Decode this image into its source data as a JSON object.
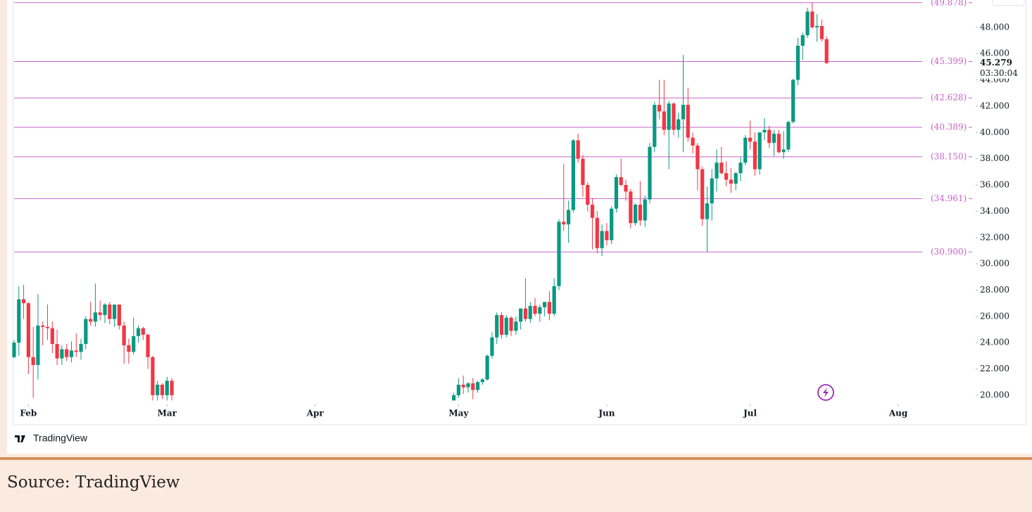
{
  "chart_data": {
    "type": "candlestick",
    "x": [
      29,
      30,
      31,
      32,
      33,
      34,
      35,
      36,
      37,
      38,
      39,
      40,
      41,
      42,
      43,
      44,
      45,
      46,
      47,
      48,
      49,
      50,
      51,
      52,
      53,
      54,
      55,
      56,
      57,
      58,
      59,
      60,
      61,
      62,
      121,
      122,
      123,
      124,
      125,
      126,
      127,
      128,
      129,
      130,
      131,
      132,
      133,
      134,
      135,
      136,
      137,
      138,
      139,
      140,
      141,
      142,
      143,
      144,
      145,
      146,
      147,
      148,
      149,
      150,
      151,
      152,
      153,
      154,
      155,
      156,
      157,
      158,
      159,
      160,
      161,
      162,
      163,
      164,
      165,
      166,
      167,
      168,
      169,
      170,
      171,
      172,
      173,
      174,
      175,
      176,
      177,
      178,
      179,
      180,
      181,
      182,
      183,
      184,
      185,
      186,
      187,
      188,
      189,
      190,
      191,
      192,
      193,
      194,
      195,
      196,
      197,
      198,
      199
    ],
    "open": [
      22.9,
      24.0,
      27.3,
      27.0,
      22.9,
      22.3,
      25.3,
      25.2,
      25.1,
      23.9,
      22.8,
      23.5,
      22.9,
      23.4,
      23.3,
      23.9,
      25.8,
      25.6,
      26.3,
      26.1,
      26.9,
      25.8,
      26.9,
      25.3,
      23.8,
      23.3,
      24.5,
      25.1,
      24.6,
      22.9,
      20.0,
      20.8,
      20.0,
      21.1,
      19.6,
      20.0,
      20.8,
      20.6,
      20.9,
      20.4,
      21.0,
      21.2,
      23.0,
      24.4,
      26.1,
      24.6,
      25.9,
      24.9,
      25.6,
      26.6,
      25.8,
      26.8,
      26.2,
      26.7,
      27.1,
      26.2,
      28.3,
      33.2,
      33.0,
      34.1,
      39.4,
      38.0,
      36.0,
      34.5,
      33.5,
      31.2,
      32.5,
      31.8,
      34.2,
      36.6,
      36.0,
      35.5,
      33.1,
      34.5,
      33.3,
      34.9,
      38.9,
      42.1,
      41.6,
      40.2,
      42.2,
      40.2,
      41.0,
      42.1,
      39.6,
      39.0,
      37.2,
      33.4,
      34.6,
      36.5,
      37.7,
      36.9,
      36.4,
      36.1,
      36.9,
      37.7,
      39.6,
      39.3,
      37.2,
      40.0,
      40.2,
      39.2,
      39.9,
      38.5,
      38.7,
      40.8,
      44.0,
      46.6,
      47.4,
      49.2,
      48.0,
      48.1,
      47.1
    ],
    "high": [
      24.2,
      28.3,
      28.4,
      27.1,
      25.2,
      27.7,
      25.6,
      26.9,
      25.6,
      25.0,
      23.8,
      23.9,
      24.1,
      24.7,
      24.3,
      26.0,
      27.1,
      28.5,
      27.2,
      27.0,
      27.1,
      26.9,
      26.9,
      25.6,
      24.3,
      25.9,
      25.3,
      25.2,
      24.7,
      23.0,
      21.1,
      20.9,
      21.4,
      21.3,
      20.2,
      21.3,
      21.5,
      21.0,
      21.3,
      21.1,
      21.3,
      23.1,
      24.8,
      26.3,
      26.3,
      26.1,
      26.0,
      26.0,
      26.6,
      28.9,
      27.1,
      27.4,
      26.9,
      27.1,
      27.9,
      28.9,
      33.4,
      37.6,
      34.8,
      39.5,
      39.9,
      38.3,
      36.2,
      35.0,
      34.0,
      33.0,
      33.1,
      34.4,
      36.8,
      38.0,
      36.4,
      35.7,
      34.6,
      36.3,
      35.2,
      39.2,
      42.3,
      44.0,
      44.0,
      42.4,
      42.3,
      41.5,
      45.9,
      43.4,
      40.0,
      39.2,
      37.4,
      35.9,
      37.2,
      38.7,
      38.9,
      37.8,
      37.3,
      37.0,
      38.1,
      39.8,
      40.9,
      40.0,
      40.0,
      41.1,
      40.5,
      40.2,
      40.2,
      40.1,
      40.9,
      44.1,
      47.2,
      47.6,
      49.5,
      49.9,
      49.0,
      48.6,
      47.3
    ],
    "low": [
      22.8,
      23.0,
      25.8,
      21.6,
      19.8,
      21.2,
      23.8,
      24.2,
      23.2,
      22.3,
      22.3,
      22.6,
      22.5,
      22.9,
      22.7,
      23.5,
      25.3,
      25.2,
      25.7,
      25.5,
      25.4,
      25.2,
      25.0,
      22.4,
      22.4,
      23.1,
      24.0,
      24.2,
      22.0,
      19.6,
      19.6,
      19.7,
      19.6,
      19.6,
      19.6,
      19.8,
      20.1,
      20.2,
      19.7,
      20.2,
      20.8,
      21.1,
      22.8,
      23.9,
      24.3,
      24.4,
      24.5,
      24.6,
      25.0,
      25.6,
      25.5,
      26.0,
      25.6,
      26.0,
      25.7,
      26.0,
      28.0,
      32.5,
      31.6,
      33.9,
      37.7,
      35.1,
      34.0,
      31.1,
      30.8,
      30.6,
      31.4,
      31.5,
      33.9,
      35.9,
      34.8,
      32.7,
      32.9,
      32.9,
      32.8,
      34.6,
      38.5,
      41.0,
      39.8,
      37.2,
      39.8,
      39.6,
      38.5,
      39.3,
      38.4,
      35.6,
      32.9,
      30.9,
      33.3,
      35.5,
      36.8,
      35.9,
      35.4,
      35.6,
      36.3,
      37.5,
      38.7,
      36.7,
      36.8,
      39.4,
      38.8,
      38.2,
      38.4,
      38.0,
      38.5,
      40.7,
      43.6,
      45.5,
      47.2,
      47.9,
      46.9,
      46.9,
      45.2
    ],
    "close": [
      24.0,
      27.3,
      27.0,
      22.9,
      22.3,
      25.3,
      25.2,
      25.1,
      23.9,
      22.8,
      23.5,
      22.9,
      23.4,
      23.3,
      23.9,
      25.8,
      25.6,
      26.3,
      26.1,
      26.9,
      25.8,
      26.9,
      25.3,
      23.8,
      23.3,
      24.5,
      25.1,
      24.6,
      22.9,
      20.0,
      20.8,
      20.0,
      21.1,
      20.0,
      20.0,
      20.8,
      20.6,
      20.9,
      20.4,
      21.0,
      21.2,
      23.0,
      24.4,
      26.1,
      24.6,
      25.9,
      24.9,
      25.6,
      26.6,
      25.8,
      26.8,
      26.2,
      26.7,
      27.1,
      26.2,
      28.3,
      33.2,
      33.0,
      34.1,
      39.4,
      38.0,
      36.0,
      34.5,
      33.5,
      31.2,
      32.5,
      31.8,
      34.2,
      36.6,
      36.0,
      35.5,
      33.1,
      34.5,
      33.3,
      34.9,
      38.9,
      42.1,
      41.6,
      40.2,
      42.2,
      40.2,
      41.0,
      42.1,
      39.6,
      39.0,
      37.2,
      33.4,
      34.6,
      36.5,
      37.7,
      36.9,
      36.4,
      36.1,
      36.9,
      37.7,
      39.6,
      39.3,
      37.2,
      40.0,
      40.2,
      39.2,
      39.9,
      38.5,
      38.7,
      40.8,
      44.0,
      46.6,
      47.4,
      49.2,
      48.0,
      48.1,
      47.1,
      45.279
    ],
    "up_color": "#089981",
    "down_color": "#f23645",
    "xlim": [
      29,
      219
    ],
    "xticks": [
      {
        "value": 32,
        "label": "Feb"
      },
      {
        "value": 61,
        "label": "Mar"
      },
      {
        "value": 92,
        "label": "Apr"
      },
      {
        "value": 122,
        "label": "May"
      },
      {
        "value": 153,
        "label": "Jun"
      },
      {
        "value": 183,
        "label": "Jul"
      },
      {
        "value": 214,
        "label": "Aug"
      }
    ],
    "ylim": [
      19.3,
      50.08
    ],
    "yticks": [
      {
        "value": 20,
        "label": "20.000"
      },
      {
        "value": 22,
        "label": "22.000"
      },
      {
        "value": 24,
        "label": "24.000"
      },
      {
        "value": 26,
        "label": "26.000"
      },
      {
        "value": 28,
        "label": "28.000"
      },
      {
        "value": 30,
        "label": "30.000"
      },
      {
        "value": 32,
        "label": "32.000"
      },
      {
        "value": 34,
        "label": "34.000"
      },
      {
        "value": 36,
        "label": "36.000"
      },
      {
        "value": 38,
        "label": "38.000"
      },
      {
        "value": 40,
        "label": "40.000"
      },
      {
        "value": 42,
        "label": "42.000"
      },
      {
        "value": 44,
        "label": "44.000"
      },
      {
        "value": 46,
        "label": "46.000"
      },
      {
        "value": 48,
        "label": "48.000"
      }
    ],
    "levels": [
      {
        "value": 49.878,
        "label": "(49.878)"
      },
      {
        "value": 45.399,
        "label": "(45.399)"
      },
      {
        "value": 42.628,
        "label": "(42.628)"
      },
      {
        "value": 40.389,
        "label": "(40.389)"
      },
      {
        "value": 38.15,
        "label": "(38.150)"
      },
      {
        "value": 34.961,
        "label": "(34.961)"
      },
      {
        "value": 30.9,
        "label": "(30.900)"
      }
    ],
    "level_color": "#c763cb",
    "countdown": "03:30:04",
    "logo": "TradingView"
  },
  "source": "Source: TradingView"
}
